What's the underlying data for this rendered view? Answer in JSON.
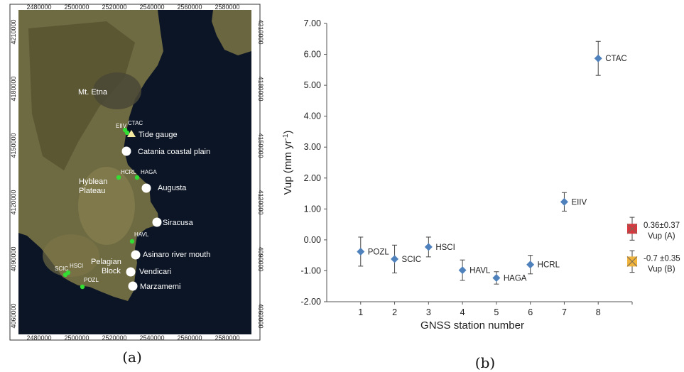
{
  "panel_a": {
    "label": "(a)",
    "x_ticks": [
      "2480000",
      "2500000",
      "2520000",
      "2540000",
      "2560000",
      "2580000"
    ],
    "y_ticks": [
      "4210000",
      "4180000",
      "4150000",
      "4120000",
      "4090000",
      "4060000"
    ],
    "place_labels": {
      "etna": "Mt. Etna",
      "tide_gauge": "Tide gauge",
      "catania": "Catania coastal plain",
      "hyblean_1": "Hyblean",
      "hyblean_2": "Plateau",
      "augusta": "Augusta",
      "siracusa": "Siracusa",
      "asinaro": "Asinaro river mouth",
      "pelagian_1": "Pelagian",
      "pelagian_2": "Block",
      "vendicari": "Vendicari",
      "marzamemi": "Marzamemi"
    },
    "station_labels": {
      "eiiv": "EIIV",
      "ctac": "CTAC",
      "hcrl": "HCRL",
      "haga": "HAGA",
      "havl": "HAVL",
      "scic": "SCIC",
      "hsci": "HSCI",
      "pozl": "POZL"
    }
  },
  "panel_b": {
    "label": "(b)"
  },
  "chart_data": {
    "type": "scatter",
    "xlabel": "GNSS station number",
    "ylabel": "Vup (mm yr⁻¹)",
    "ylim": [
      -2.0,
      7.0
    ],
    "xlim": [
      0,
      9
    ],
    "x_ticks": [
      1,
      2,
      3,
      4,
      5,
      6,
      7,
      8
    ],
    "y_ticks": [
      "7.00",
      "6.00",
      "5.00",
      "4.00",
      "3.00",
      "2.00",
      "1.00",
      "0.00",
      "-1.00",
      "-2.00"
    ],
    "grid": false,
    "marker_color": "#4f81bd",
    "points": [
      {
        "x": 1,
        "y": -0.38,
        "err": 0.47,
        "label": "POZL"
      },
      {
        "x": 2,
        "y": -0.62,
        "err": 0.45,
        "label": "SCIC"
      },
      {
        "x": 3,
        "y": -0.23,
        "err": 0.32,
        "label": "HSCI"
      },
      {
        "x": 4,
        "y": -0.98,
        "err": 0.33,
        "label": "HAVL"
      },
      {
        "x": 5,
        "y": -1.23,
        "err": 0.2,
        "label": "HAGA"
      },
      {
        "x": 6,
        "y": -0.8,
        "err": 0.3,
        "label": "HCRL"
      },
      {
        "x": 7,
        "y": 1.23,
        "err": 0.3,
        "label": "EIIV"
      },
      {
        "x": 8,
        "y": 5.87,
        "err": 0.55,
        "label": "CTAC"
      }
    ],
    "averages": [
      {
        "x": 9,
        "y": 0.36,
        "err": 0.37,
        "label_1": "0.36±0.37",
        "label_2": "Vup (A)",
        "color": "#d7373f"
      },
      {
        "x": 9,
        "y": -0.7,
        "err": 0.35,
        "label_1": "-0.7 ±0.35",
        "label_2": "Vup (B)",
        "color": "#f0b43c"
      }
    ]
  }
}
